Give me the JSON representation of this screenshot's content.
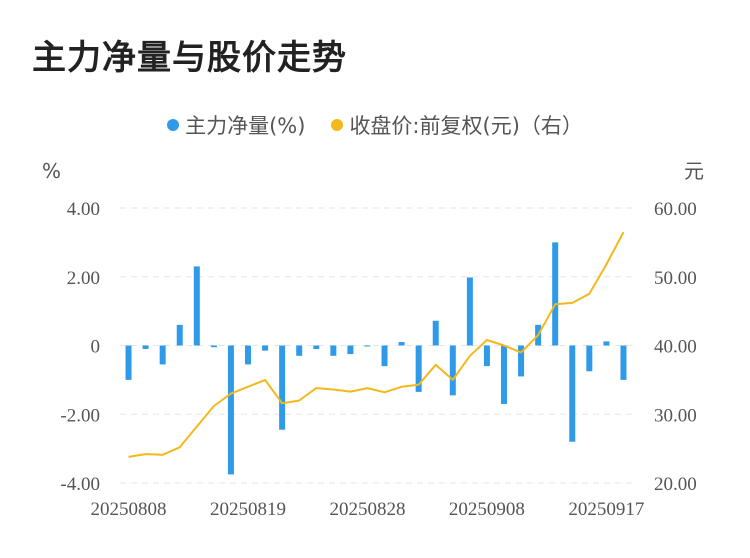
{
  "title": "主力净量与股价走势",
  "chart_data": {
    "type": "bar+line",
    "legend": [
      {
        "name": "主力净量(%)",
        "color": "#2f9ae8"
      },
      {
        "name": "收盘价:前复权(元)（右）",
        "color": "#f2b81c"
      }
    ],
    "y_left_unit": "%",
    "y_right_unit": "元",
    "y_left_ticks": [
      "4.00",
      "2.00",
      "0",
      "-2.00",
      "-4.00"
    ],
    "y_right_ticks": [
      "60.00",
      "50.00",
      "40.00",
      "30.00",
      "20.00"
    ],
    "ylim_left": [
      -4,
      4
    ],
    "ylim_right": [
      20,
      60
    ],
    "x_tick_labels": [
      "20250808",
      "20250819",
      "20250828",
      "20250908",
      "20250917"
    ],
    "x_tick_indices": [
      0,
      7,
      14,
      21,
      28
    ],
    "bar_values": [
      -1.0,
      -0.1,
      -0.55,
      0.6,
      2.3,
      -0.05,
      -3.75,
      -0.55,
      -0.15,
      -2.45,
      -0.3,
      -0.1,
      -0.3,
      -0.25,
      -0.02,
      -0.6,
      0.1,
      -1.35,
      0.72,
      -1.45,
      1.98,
      -0.6,
      -1.7,
      -0.9,
      0.6,
      3.0,
      -2.8,
      -0.75,
      0.12,
      -1.0
    ],
    "line_values": [
      23.8,
      24.2,
      24.1,
      25.2,
      28.2,
      31.2,
      33.0,
      34.0,
      35.0,
      31.6,
      32.0,
      33.8,
      33.6,
      33.3,
      33.8,
      33.2,
      34.0,
      34.3,
      37.2,
      35.0,
      38.5,
      40.8,
      40.0,
      39.0,
      41.5,
      46.0,
      46.2,
      47.5,
      51.8,
      56.5
    ]
  }
}
